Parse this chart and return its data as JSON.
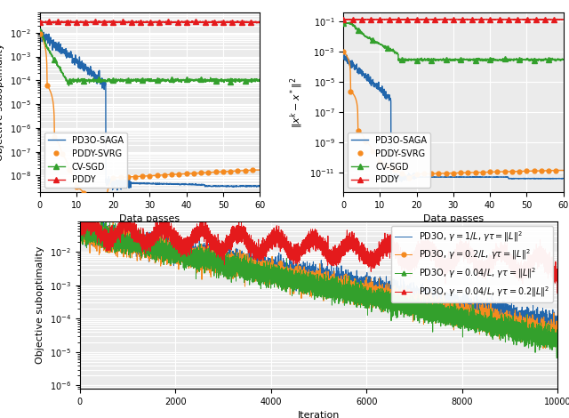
{
  "top_left": {
    "xlabel": "Data passes",
    "ylabel": "Objective suboptimality",
    "xlim": [
      0,
      60
    ],
    "ylim": [
      2e-09,
      0.07
    ],
    "colors": {
      "PD3O-SAGA": "#2166ac",
      "PDDY-SVRG": "#f58a1f",
      "CV-SGD": "#33a02c",
      "PDDY": "#e41a1c"
    }
  },
  "top_right": {
    "xlabel": "Data passes",
    "ylabel": "$\\|x^k - x^*\\|^2$",
    "xlim": [
      0,
      60
    ],
    "ylim": [
      5e-13,
      0.4
    ],
    "colors": {
      "PD3O-SAGA": "#2166ac",
      "PDDY-SVRG": "#f58a1f",
      "CV-SGD": "#33a02c",
      "PDDY": "#e41a1c"
    }
  },
  "bottom": {
    "xlabel": "Iteration",
    "ylabel": "Objective suboptimality",
    "xlim": [
      0,
      10000
    ],
    "ylim": [
      8e-07,
      0.08
    ],
    "colors": {
      "blue": "#2166ac",
      "orange": "#f58a1f",
      "green": "#33a02c",
      "red": "#e41a1c"
    },
    "labels": [
      "PD3O, $\\gamma=1/L$, $\\gamma\\tau=\\|L\\|^2$",
      "PD3O, $\\gamma=0.2/L$, $\\gamma\\tau=\\|L\\|^2$",
      "PD3O, $\\gamma=0.04/L$, $\\gamma\\tau=\\|L\\|^2$",
      "PD3O, $\\gamma=0.04/L$, $\\gamma\\tau=0.2\\|L\\|^2$"
    ]
  },
  "bg_color": "#ebebeb",
  "grid_color": "#ffffff"
}
